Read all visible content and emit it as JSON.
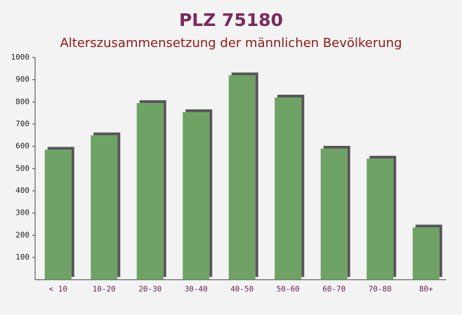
{
  "chart_data": {
    "type": "bar",
    "title": "PLZ 75180",
    "subtitle": "Alterszusammensetzung der männlichen Bevölkerung",
    "categories": [
      "< 10",
      "10-20",
      "20-30",
      "30-40",
      "40-50",
      "50-60",
      "60-70",
      "70-80",
      "80+"
    ],
    "values": [
      585,
      650,
      795,
      754,
      920,
      820,
      590,
      545,
      235
    ],
    "color": "#5f9a55",
    "ylim": [
      0,
      1000
    ],
    "yticks": [
      100,
      200,
      300,
      400,
      500,
      600,
      700,
      800,
      900,
      1000
    ]
  }
}
